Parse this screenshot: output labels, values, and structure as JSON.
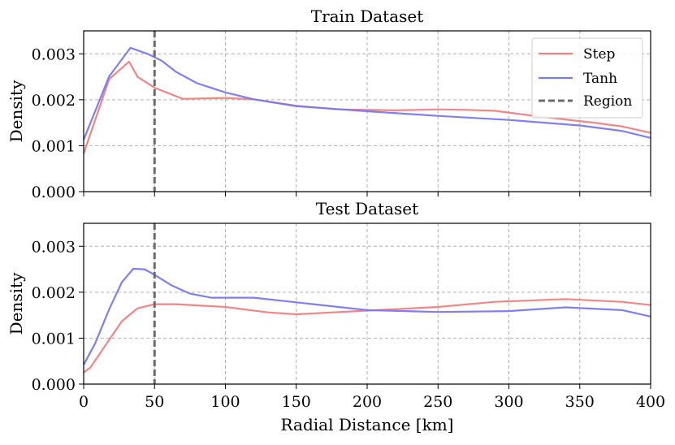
{
  "chart_data": [
    {
      "type": "line",
      "title": "Train Dataset",
      "xlabel": "",
      "ylabel": "Density",
      "xlim": [
        0,
        400
      ],
      "ylim": [
        0,
        0.0035
      ],
      "grid": true,
      "legend": "top-right",
      "xticks": [
        0,
        50,
        100,
        150,
        200,
        250,
        300,
        350,
        400
      ],
      "xtick_labels": [],
      "yticks": [
        0,
        0.001,
        0.002,
        0.003
      ],
      "ytick_labels": [
        "0.000",
        "0.001",
        "0.002",
        "0.003"
      ],
      "series": [
        {
          "name": "Step",
          "color": "#f08080",
          "x": [
            0,
            18,
            32,
            38,
            50,
            70,
            100,
            120,
            150,
            180,
            220,
            250,
            270,
            290,
            320,
            360,
            380,
            400
          ],
          "values": [
            0.00083,
            0.00245,
            0.00283,
            0.0025,
            0.00226,
            0.00202,
            0.00204,
            0.00201,
            0.00187,
            0.00179,
            0.00177,
            0.00179,
            0.00178,
            0.00176,
            0.00164,
            0.0015,
            0.00142,
            0.00128
          ]
        },
        {
          "name": "Tanh",
          "color": "#7878f0",
          "x": [
            0,
            18,
            33,
            45,
            55,
            65,
            80,
            100,
            120,
            150,
            200,
            250,
            300,
            350,
            380,
            400
          ],
          "values": [
            0.00113,
            0.00251,
            0.00313,
            0.003,
            0.00285,
            0.00261,
            0.00236,
            0.00216,
            0.00201,
            0.00186,
            0.00175,
            0.00165,
            0.00156,
            0.00144,
            0.00132,
            0.00117
          ]
        },
        {
          "name": "Region",
          "kind": "vline",
          "color": "#6b6b6b",
          "x": 50
        }
      ]
    },
    {
      "type": "line",
      "title": "Test Dataset",
      "xlabel": "Radial Distance [km]",
      "ylabel": "Density",
      "xlim": [
        0,
        400
      ],
      "ylim": [
        0,
        0.0035
      ],
      "grid": true,
      "legend": "none",
      "xticks": [
        0,
        50,
        100,
        150,
        200,
        250,
        300,
        350,
        400
      ],
      "xtick_labels": [
        "0",
        "50",
        "100",
        "150",
        "200",
        "250",
        "300",
        "350",
        "400"
      ],
      "yticks": [
        0,
        0.001,
        0.002,
        0.003
      ],
      "ytick_labels": [
        "0.000",
        "0.001",
        "0.002",
        "0.003"
      ],
      "series": [
        {
          "name": "Step",
          "color": "#f08080",
          "x": [
            0,
            5,
            15,
            27,
            38,
            50,
            65,
            100,
            130,
            150,
            200,
            250,
            290,
            340,
            380,
            400
          ],
          "values": [
            0.00025,
            0.00037,
            0.00083,
            0.00137,
            0.00165,
            0.00174,
            0.00174,
            0.00168,
            0.00156,
            0.00152,
            0.0016,
            0.00168,
            0.00179,
            0.00185,
            0.00179,
            0.00172
          ]
        },
        {
          "name": "Tanh",
          "color": "#7878f0",
          "x": [
            0,
            8,
            18,
            27,
            35,
            43,
            50,
            62,
            75,
            90,
            100,
            120,
            150,
            200,
            250,
            300,
            340,
            380,
            400
          ],
          "values": [
            0.00042,
            0.00088,
            0.00163,
            0.00222,
            0.00251,
            0.0025,
            0.00238,
            0.00215,
            0.00197,
            0.00188,
            0.00188,
            0.00188,
            0.00178,
            0.00161,
            0.00157,
            0.00159,
            0.00167,
            0.00161,
            0.00147
          ]
        },
        {
          "name": "Region",
          "kind": "vline",
          "color": "#6b6b6b",
          "x": 50
        }
      ]
    }
  ]
}
